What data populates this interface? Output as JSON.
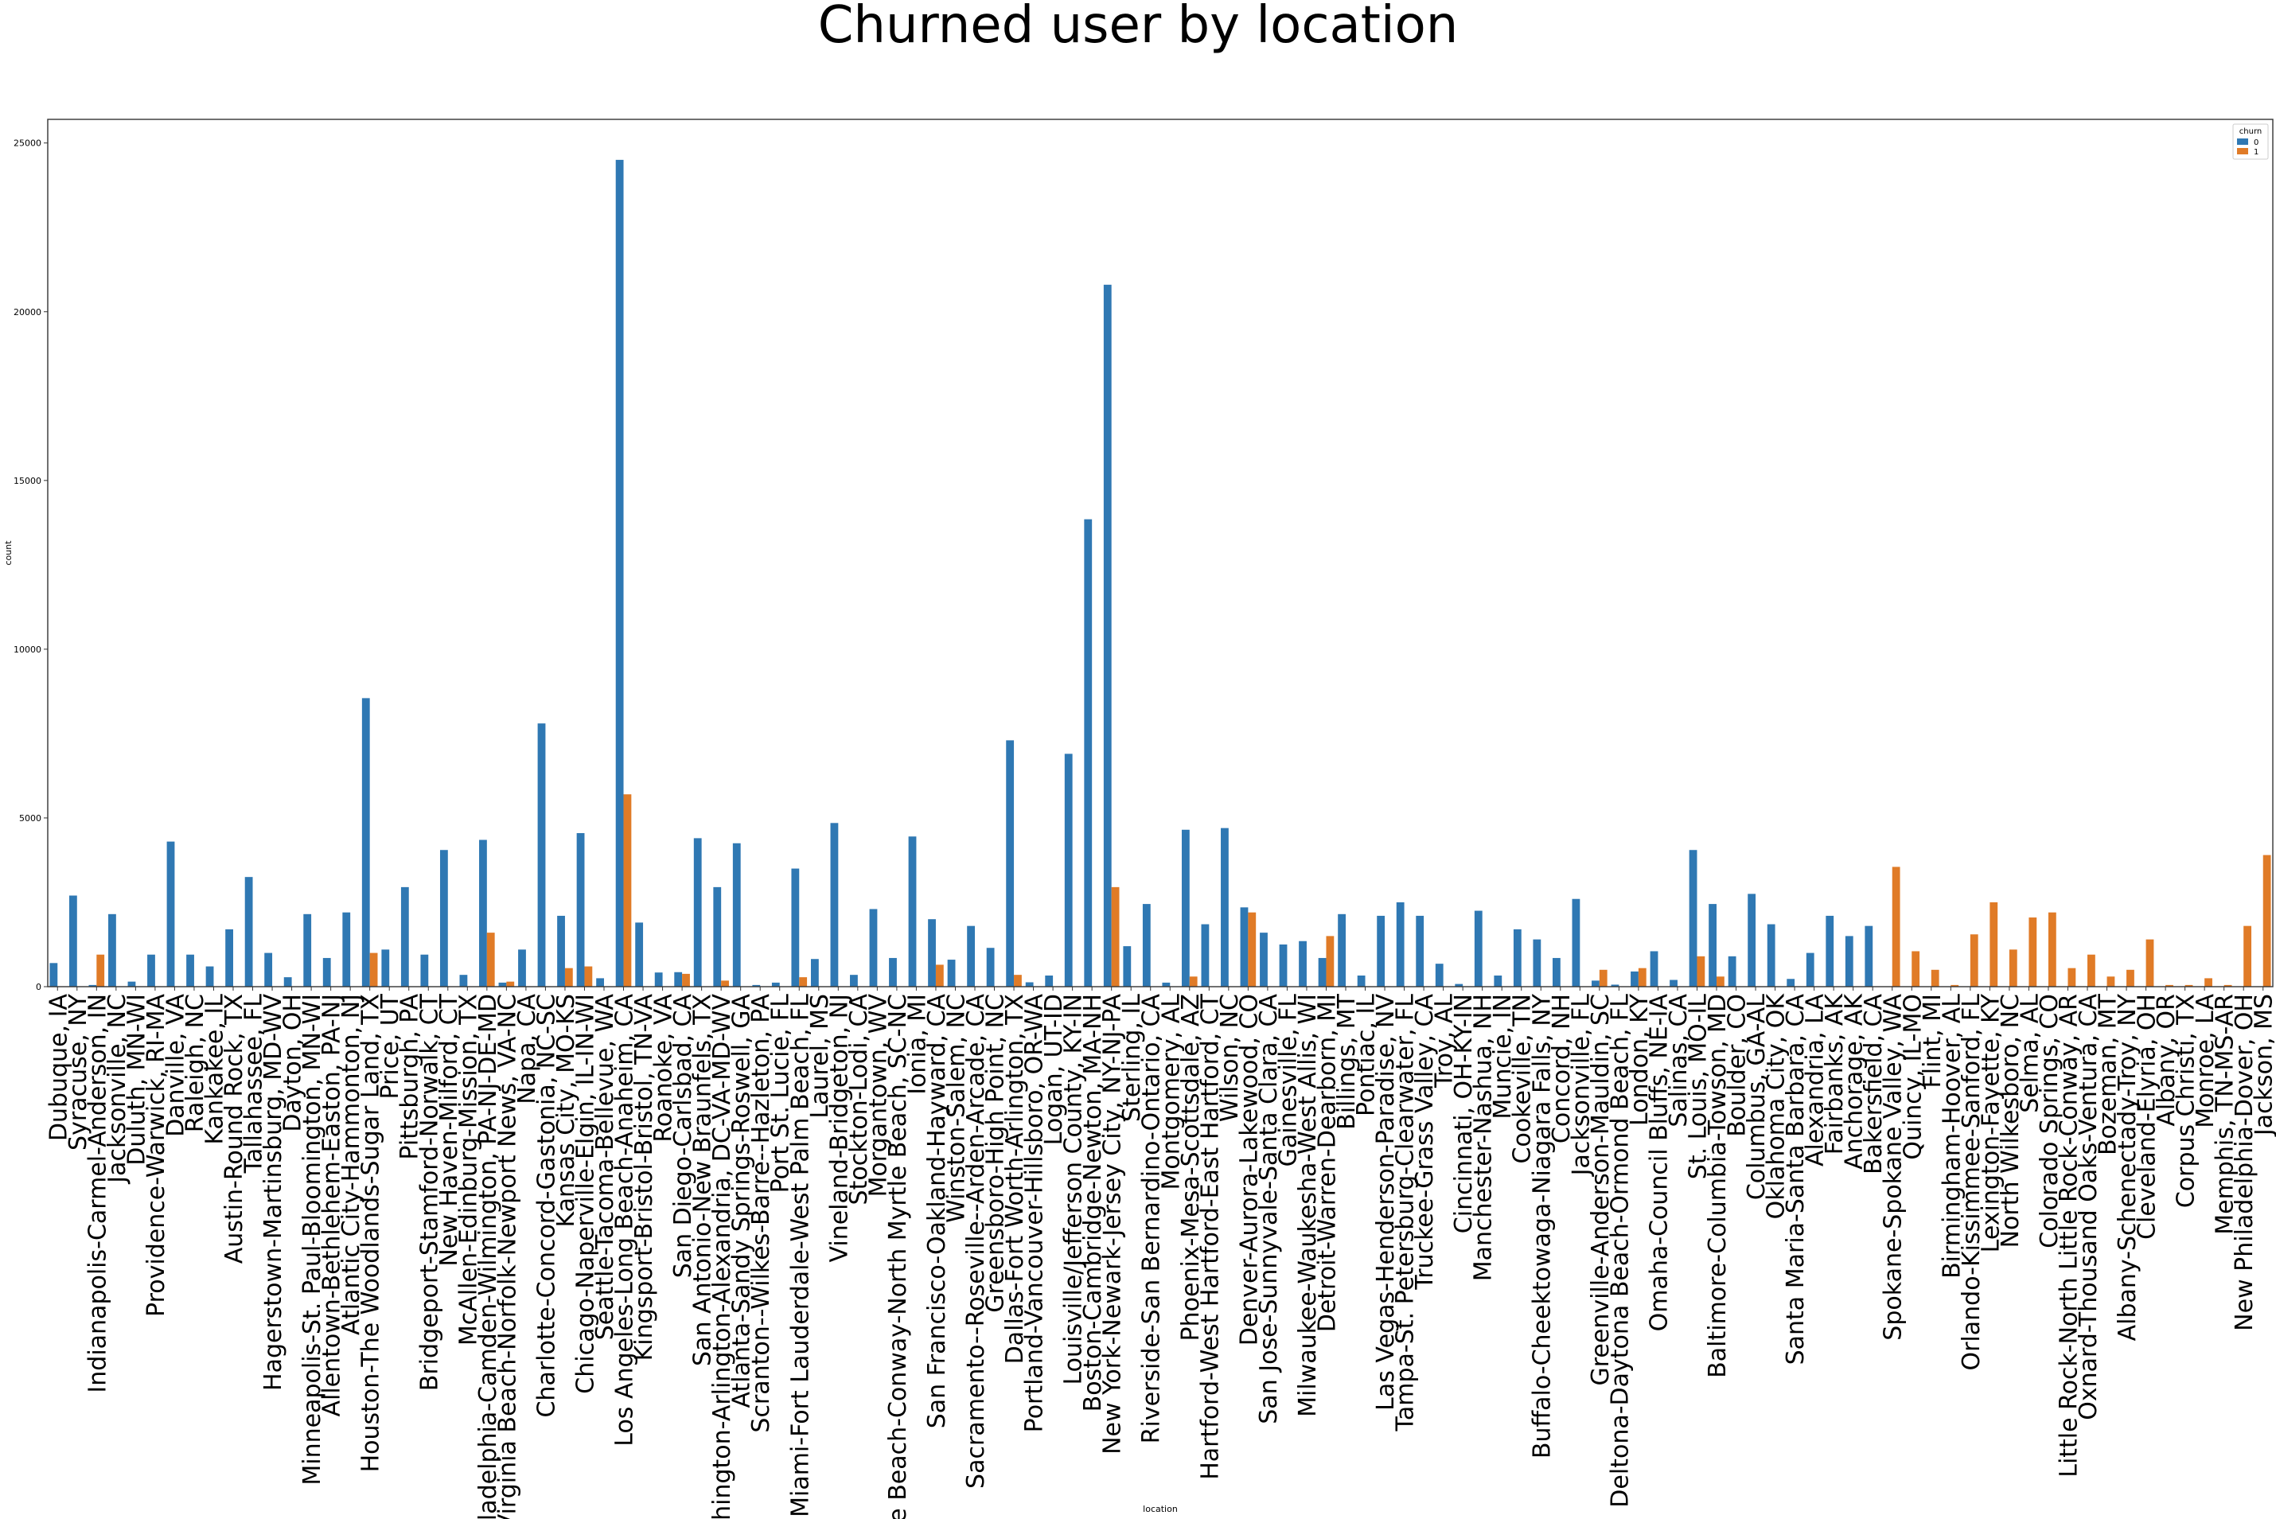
{
  "chart_data": {
    "type": "bar",
    "title": "Churned user by location",
    "xlabel": "location",
    "ylabel": "count",
    "ylim": [
      0,
      25700
    ],
    "yticks": [
      0,
      5000,
      10000,
      15000,
      20000,
      25000
    ],
    "grid": false,
    "legend_title": "churn",
    "legend_position": "top-right",
    "colors": {
      "0": "#2f78b3",
      "1": "#e07b27"
    },
    "categories": [
      "Dubuque, IA",
      "Syracuse, NY",
      "Indianapolis-Carmel-Anderson, IN",
      "Jacksonville, NC",
      "Duluth, MN-WI",
      "Providence-Warwick, RI-MA",
      "Danville, VA",
      "Raleigh, NC",
      "Kankakee, IL",
      "Austin-Round Rock, TX",
      "Tallahassee, FL",
      "Hagerstown-Martinsburg, MD-WV",
      "Dayton, OH",
      "Minneapolis-St. Paul-Bloomington, MN-WI",
      "Allentown-Bethlehem-Easton, PA-NJ",
      "Atlantic City-Hammonton, NJ",
      "Houston-The Woodlands-Sugar Land, TX",
      "Price, UT",
      "Pittsburgh, PA",
      "Bridgeport-Stamford-Norwalk, CT",
      "New Haven-Milford, CT",
      "McAllen-Edinburg-Mission, TX",
      "Philadelphia-Camden-Wilmington, PA-NJ-DE-MD",
      "Virginia Beach-Norfolk-Newport News, VA-NC",
      "Napa, CA",
      "Charlotte-Concord-Gastonia, NC-SC",
      "Kansas City, MO-KS",
      "Chicago-Naperville-Elgin, IL-IN-WI",
      "Seattle-Tacoma-Bellevue, WA",
      "Los Angeles-Long Beach-Anaheim, CA",
      "Kingsport-Bristol-Bristol, TN-VA",
      "Roanoke, VA",
      "San Diego-Carlsbad, CA",
      "San Antonio-New Braunfels, TX",
      "Washington-Arlington-Alexandria, DC-VA-MD-WV",
      "Atlanta-Sandy Springs-Roswell, GA",
      "Scranton--Wilkes-Barre--Hazleton, PA",
      "Port St. Lucie, FL",
      "Miami-Fort Lauderdale-West Palm Beach, FL",
      "Laurel, MS",
      "Vineland-Bridgeton, NJ",
      "Stockton-Lodi, CA",
      "Morgantown, WV",
      "Myrtle Beach-Conway-North Myrtle Beach, SC-NC",
      "Ionia, MI",
      "San Francisco-Oakland-Hayward, CA",
      "Winston-Salem, NC",
      "Sacramento--Roseville--Arden-Arcade, CA",
      "Greensboro-High Point, NC",
      "Dallas-Fort Worth-Arlington, TX",
      "Portland-Vancouver-Hillsboro, OR-WA",
      "Logan, UT-ID",
      "Louisville/Jefferson County, KY-IN",
      "Boston-Cambridge-Newton, MA-NH",
      "New York-Newark-Jersey City, NY-NJ-PA",
      "Sterling, IL",
      "Riverside-San Bernardino-Ontario, CA",
      "Montgomery, AL",
      "Phoenix-Mesa-Scottsdale, AZ",
      "Hartford-West Hartford-East Hartford, CT",
      "Wilson, NC",
      "Denver-Aurora-Lakewood, CO",
      "San Jose-Sunnyvale-Santa Clara, CA",
      "Gainesville, FL",
      "Milwaukee-Waukesha-West Allis, WI",
      "Detroit-Warren-Dearborn, MI",
      "Billings, MT",
      "Pontiac, IL",
      "Las Vegas-Henderson-Paradise, NV",
      "Tampa-St. Petersburg-Clearwater, FL",
      "Truckee-Grass Valley, CA",
      "Troy, AL",
      "Cincinnati, OH-KY-IN",
      "Manchester-Nashua, NH",
      "Muncie, IN",
      "Cookeville, TN",
      "Buffalo-Cheektowaga-Niagara Falls, NY",
      "Concord, NH",
      "Jacksonville, FL",
      "Greenville-Anderson-Mauldin, SC",
      "Deltona-Daytona Beach-Ormond Beach, FL",
      "London, KY",
      "Omaha-Council Bluffs, NE-IA",
      "Salinas, CA",
      "St. Louis, MO-IL",
      "Baltimore-Columbia-Towson, MD",
      "Boulder, CO",
      "Columbus, GA-AL",
      "Oklahoma City, OK",
      "Santa Maria-Santa Barbara, CA",
      "Alexandria, LA",
      "Fairbanks, AK",
      "Anchorage, AK",
      "Bakersfield, CA",
      "Spokane-Spokane Valley, WA",
      "Quincy, IL-MO",
      "Flint, MI",
      "Birmingham-Hoover, AL",
      "Orlando-Kissimmee-Sanford, FL",
      "Lexington-Fayette, KY",
      "North Wilkesboro, NC",
      "Selma, AL",
      "Colorado Springs, CO",
      "Little Rock-North Little Rock-Conway, AR",
      "Oxnard-Thousand Oaks-Ventura, CA",
      "Bozeman, MT",
      "Albany-Schenectady-Troy, NY",
      "Cleveland-Elyria, OH",
      "Albany, OR",
      "Corpus Christi, TX",
      "Monroe, LA",
      "Memphis, TN-MS-AR",
      "New Philadelphia-Dover, OH",
      "Jackson, MS"
    ],
    "series": [
      {
        "name": "0",
        "values": [
          700,
          2700,
          50,
          2150,
          150,
          950,
          4300,
          950,
          600,
          1700,
          3250,
          1000,
          280,
          2150,
          850,
          2200,
          8550,
          1100,
          2950,
          950,
          4050,
          350,
          4350,
          120,
          1100,
          7800,
          2100,
          4550,
          250,
          24500,
          1900,
          420,
          430,
          4400,
          2950,
          4250,
          50,
          120,
          3500,
          820,
          4850,
          350,
          2300,
          850,
          4450,
          2000,
          800,
          1800,
          1150,
          7300,
          130,
          330,
          6900,
          13850,
          20800,
          1200,
          2450,
          120,
          4650,
          1850,
          4700,
          2350,
          1600,
          1250,
          1350,
          850,
          2150,
          330,
          2100,
          2500,
          2100,
          680,
          80,
          2250,
          330,
          1700,
          1400,
          850,
          2600,
          180,
          60,
          450,
          1050,
          200,
          4050,
          2450,
          900,
          2750,
          1850,
          230,
          1000,
          2100,
          1500,
          1800,
          0,
          0,
          0,
          0,
          0,
          0,
          0,
          0,
          0,
          0,
          0,
          0,
          0,
          0,
          0,
          0,
          0,
          0,
          0,
          0
        ]
      },
      {
        "name": "1",
        "values": [
          0,
          0,
          950,
          0,
          0,
          0,
          0,
          0,
          0,
          0,
          0,
          0,
          0,
          0,
          0,
          0,
          1000,
          0,
          0,
          0,
          0,
          0,
          1600,
          150,
          0,
          0,
          550,
          600,
          0,
          5700,
          0,
          0,
          380,
          0,
          180,
          0,
          0,
          0,
          280,
          0,
          0,
          0,
          0,
          0,
          0,
          650,
          0,
          0,
          0,
          350,
          0,
          0,
          0,
          0,
          2950,
          0,
          0,
          0,
          300,
          0,
          0,
          2200,
          0,
          0,
          0,
          1500,
          0,
          0,
          0,
          0,
          0,
          0,
          0,
          0,
          0,
          0,
          0,
          0,
          0,
          500,
          0,
          550,
          0,
          0,
          900,
          300,
          0,
          0,
          0,
          0,
          0,
          0,
          0,
          0,
          3550,
          1050,
          500,
          50,
          1550,
          2500,
          1100,
          2050,
          2200,
          550,
          950,
          300,
          500,
          1400,
          50,
          50,
          250,
          50,
          1800,
          3900
        ]
      }
    ]
  }
}
